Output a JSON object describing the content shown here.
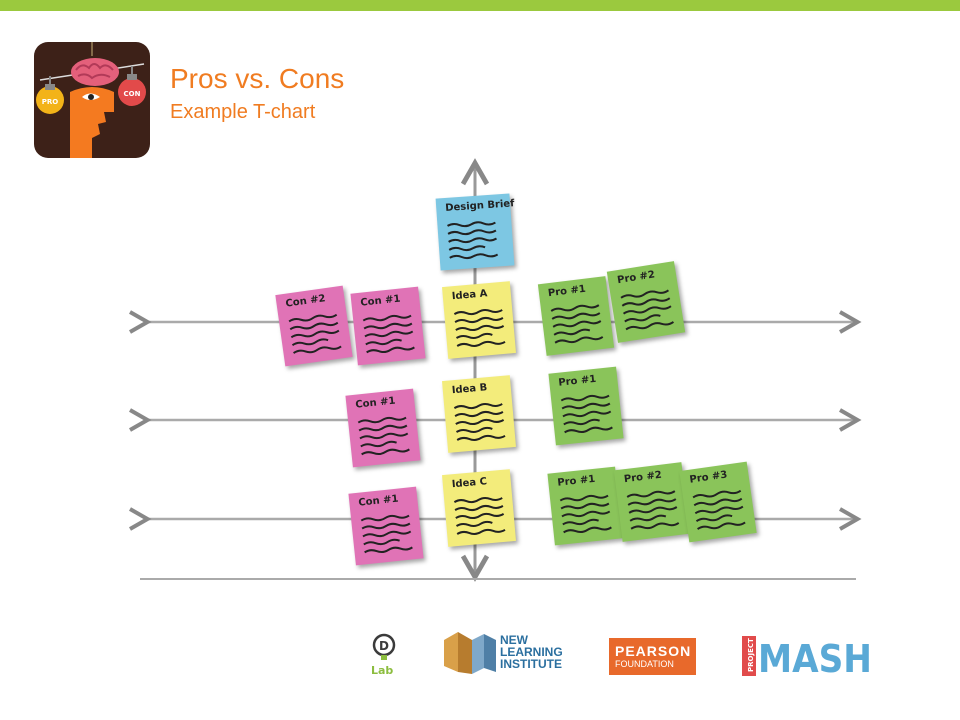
{
  "header": {
    "title": "Pros vs. Cons",
    "subtitle": "Example T-chart",
    "accent_color": "#9bc93e",
    "title_color": "#f07c21"
  },
  "hero_image": {
    "left_bulb_text": "PRO",
    "right_bulb_text": "CON"
  },
  "diagram": {
    "top_note": "Design Brief",
    "rows": [
      {
        "idea": "Idea A",
        "cons": [
          "Con #2",
          "Con #1"
        ],
        "pros": [
          "Pro #1",
          "Pro #2"
        ]
      },
      {
        "idea": "Idea B",
        "cons": [
          "Con #1"
        ],
        "pros": [
          "Pro #1"
        ]
      },
      {
        "idea": "Idea C",
        "cons": [
          "Con #1"
        ],
        "pros": [
          "Pro #1",
          "Pro #2",
          "Pro #3"
        ]
      }
    ]
  },
  "footer": {
    "dlab": "Lab",
    "nli": [
      "NEW",
      "LEARNING",
      "INSTITUTE"
    ],
    "pearson": [
      "PEARSON",
      "FOUNDATION"
    ],
    "mash_project": "PROJECT",
    "mash": "MASH"
  }
}
